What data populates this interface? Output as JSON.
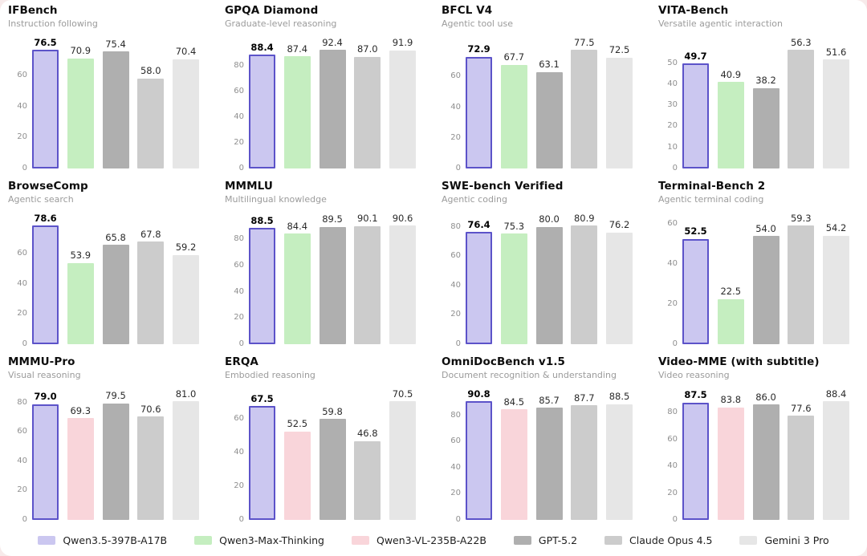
{
  "page": {
    "background": "#f7eaea",
    "card_background": "#ffffff"
  },
  "legend": {
    "models": [
      {
        "key": "qwen35",
        "label": "Qwen3.5-397B-A17B",
        "fill": "#cbc7f0",
        "border": "#5c53c9"
      },
      {
        "key": "qwenmax",
        "label": "Qwen3-Max-Thinking",
        "fill": "#c5eec0"
      },
      {
        "key": "qwenvl",
        "label": "Qwen3-VL-235B-A22B",
        "fill": "#f9d5da"
      },
      {
        "key": "gpt52",
        "label": "GPT-5.2",
        "fill": "#afafaf"
      },
      {
        "key": "claude",
        "label": "Claude Opus 4.5",
        "fill": "#cccccc"
      },
      {
        "key": "gemini",
        "label": "Gemini 3 Pro",
        "fill": "#e6e6e6"
      }
    ]
  },
  "chart_data": [
    {
      "type": "bar",
      "title": "IFBench",
      "subtitle": "Instruction following",
      "model_keys": [
        "qwen35",
        "qwenmax",
        "gpt52",
        "claude",
        "gemini"
      ],
      "values": [
        76.5,
        70.9,
        75.4,
        58.0,
        70.4
      ],
      "yticks": [
        0,
        20,
        40,
        60
      ],
      "ylim": [
        0,
        76.5
      ]
    },
    {
      "type": "bar",
      "title": "GPQA Diamond",
      "subtitle": "Graduate-level reasoning",
      "model_keys": [
        "qwen35",
        "qwenmax",
        "gpt52",
        "claude",
        "gemini"
      ],
      "values": [
        88.4,
        87.4,
        92.4,
        87.0,
        91.9
      ],
      "yticks": [
        0,
        20,
        40,
        60,
        80
      ],
      "ylim": [
        0,
        92.4
      ]
    },
    {
      "type": "bar",
      "title": "BFCL V4",
      "subtitle": "Agentic tool use",
      "model_keys": [
        "qwen35",
        "qwenmax",
        "gpt52",
        "claude",
        "gemini"
      ],
      "values": [
        72.9,
        67.7,
        63.1,
        77.5,
        72.5
      ],
      "yticks": [
        0,
        20,
        40,
        60
      ],
      "ylim": [
        0,
        77.5
      ]
    },
    {
      "type": "bar",
      "title": "VITA-Bench",
      "subtitle": "Versatile agentic interaction",
      "model_keys": [
        "qwen35",
        "qwenmax",
        "gpt52",
        "claude",
        "gemini"
      ],
      "values": [
        49.7,
        40.9,
        38.2,
        56.3,
        51.6
      ],
      "yticks": [
        0,
        10,
        20,
        30,
        40,
        50
      ],
      "ylim": [
        0,
        56.3
      ]
    },
    {
      "type": "bar",
      "title": "BrowseComp",
      "subtitle": "Agentic search",
      "model_keys": [
        "qwen35",
        "qwenmax",
        "gpt52",
        "claude",
        "gemini"
      ],
      "values": [
        78.6,
        53.9,
        65.8,
        67.8,
        59.2
      ],
      "yticks": [
        0,
        20,
        40,
        60
      ],
      "ylim": [
        0,
        78.6
      ]
    },
    {
      "type": "bar",
      "title": "MMMLU",
      "subtitle": "Multilingual knowledge",
      "model_keys": [
        "qwen35",
        "qwenmax",
        "gpt52",
        "claude",
        "gemini"
      ],
      "values": [
        88.5,
        84.4,
        89.5,
        90.1,
        90.6
      ],
      "yticks": [
        0,
        20,
        40,
        60,
        80
      ],
      "ylim": [
        0,
        90.6
      ]
    },
    {
      "type": "bar",
      "title": "SWE-bench Verified",
      "subtitle": "Agentic coding",
      "model_keys": [
        "qwen35",
        "qwenmax",
        "gpt52",
        "claude",
        "gemini"
      ],
      "values": [
        76.4,
        75.3,
        80.0,
        80.9,
        76.2
      ],
      "yticks": [
        0,
        20,
        40,
        60,
        80
      ],
      "ylim": [
        0,
        80.9
      ]
    },
    {
      "type": "bar",
      "title": "Terminal-Bench 2",
      "subtitle": "Agentic terminal coding",
      "model_keys": [
        "qwen35",
        "qwenmax",
        "gpt52",
        "claude",
        "gemini"
      ],
      "values": [
        52.5,
        22.5,
        54.0,
        59.3,
        54.2
      ],
      "yticks": [
        0,
        20,
        40,
        60
      ],
      "ylim": [
        0,
        59.3
      ]
    },
    {
      "type": "bar",
      "title": "MMMU-Pro",
      "subtitle": "Visual reasoning",
      "model_keys": [
        "qwen35",
        "qwenvl",
        "gpt52",
        "claude",
        "gemini"
      ],
      "values": [
        79.0,
        69.3,
        79.5,
        70.6,
        81.0
      ],
      "yticks": [
        0,
        20,
        40,
        60,
        80
      ],
      "ylim": [
        0,
        81.0
      ]
    },
    {
      "type": "bar",
      "title": "ERQA",
      "subtitle": "Embodied reasoning",
      "model_keys": [
        "qwen35",
        "qwenvl",
        "gpt52",
        "claude",
        "gemini"
      ],
      "values": [
        67.5,
        52.5,
        59.8,
        46.8,
        70.5
      ],
      "yticks": [
        0,
        20,
        40,
        60
      ],
      "ylim": [
        0,
        70.5
      ]
    },
    {
      "type": "bar",
      "title": "OmniDocBench v1.5",
      "subtitle": "Document recognition & understanding",
      "model_keys": [
        "qwen35",
        "qwenvl",
        "gpt52",
        "claude",
        "gemini"
      ],
      "values": [
        90.8,
        84.5,
        85.7,
        87.7,
        88.5
      ],
      "yticks": [
        0,
        20,
        40,
        60,
        80
      ],
      "ylim": [
        0,
        90.8
      ]
    },
    {
      "type": "bar",
      "title": "Video-MME (with subtitle)",
      "subtitle": "Video reasoning",
      "model_keys": [
        "qwen35",
        "qwenvl",
        "gpt52",
        "claude",
        "gemini"
      ],
      "values": [
        87.5,
        83.8,
        86.0,
        77.6,
        88.4
      ],
      "yticks": [
        0,
        20,
        40,
        60,
        80
      ],
      "ylim": [
        0,
        88.4
      ]
    }
  ]
}
